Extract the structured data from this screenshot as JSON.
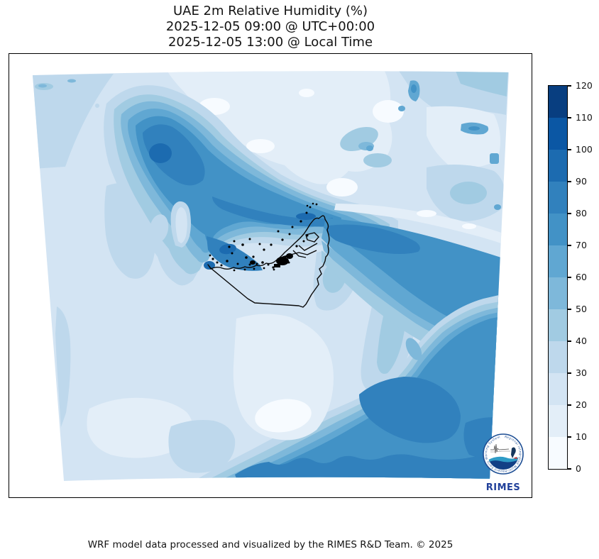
{
  "title": {
    "line1": "UAE 2m Relative Humidity (%)",
    "line2": "2025-12-05 09:00 @ UTC+00:00",
    "line3": "2025-12-05 13:00 @ Local Time"
  },
  "footer": {
    "text": "WRF model data processed and visualized by the RIMES R&D Team. © 2025"
  },
  "colorbar": {
    "min": 0,
    "max": 120,
    "step": 10,
    "tick_labels": [
      "0",
      "10",
      "20",
      "30",
      "40",
      "50",
      "60",
      "70",
      "80",
      "90",
      "100",
      "110",
      "120"
    ],
    "band_colors": [
      "#f7fbff",
      "#e3eef8",
      "#d3e4f3",
      "#bed8ec",
      "#a1cbe2",
      "#7eb8da",
      "#60a7d2",
      "#4292c6",
      "#3181bd",
      "#1c6bb0",
      "#0b57a4",
      "#083e80"
    ],
    "band_ranges": [
      "0-10",
      "10-20",
      "20-30",
      "30-40",
      "40-50",
      "50-60",
      "60-70",
      "70-80",
      "80-90",
      "90-100",
      "100-110",
      "110-120"
    ]
  },
  "logo": {
    "label": "RIMES",
    "ring_text": "Regional Integrated Multi-Hazard Early Warning System",
    "label_color": "#21409a",
    "ring_color": "#1d4e94"
  },
  "chart_data": {
    "type": "heatmap",
    "subtype": "filled-contour-weather-map",
    "title": "UAE 2m Relative Humidity (%)",
    "valid_time_utc": "2025-12-05 09:00 @ UTC+00:00",
    "valid_time_local": "2025-12-05 13:00 @ Local Time",
    "variable": "2m relative humidity",
    "units": "%",
    "colormap": "Blues",
    "levels": [
      0,
      10,
      20,
      30,
      40,
      50,
      60,
      70,
      80,
      90,
      100,
      110,
      120
    ],
    "legend_position": "right vertical colorbar",
    "map_overlay": "UAE national and emirate boundaries in black with coastal island markers",
    "regions": [
      {
        "name": "Persian Gulf (open water)",
        "approx_value_pct": "60-90"
      },
      {
        "name": "Northern Gulf core",
        "approx_value_pct": "80-100"
      },
      {
        "name": "UAE coastal waters Abu Dhabi-Dubai",
        "approx_value_pct": "80-100"
      },
      {
        "name": "Qatar peninsula",
        "approx_value_pct": "20-40"
      },
      {
        "name": "UAE / Saudi interior desert",
        "approx_value_pct": "10-30"
      },
      {
        "name": "Central Oman desert patch",
        "approx_value_pct": "0-20"
      },
      {
        "name": "Strait of Hormuz / Gulf of Oman band",
        "approx_value_pct": "70-90"
      },
      {
        "name": "Iran interior (top of domain)",
        "approx_value_pct": "10-40"
      },
      {
        "name": "Iranian mountain spots",
        "approx_value_pct": "60-80"
      },
      {
        "name": "Arabian Sea (south-east of domain)",
        "approx_value_pct": "70-90"
      },
      {
        "name": "Al Hajar foothills band (centre-right)",
        "approx_value_pct": "30-50"
      }
    ]
  }
}
